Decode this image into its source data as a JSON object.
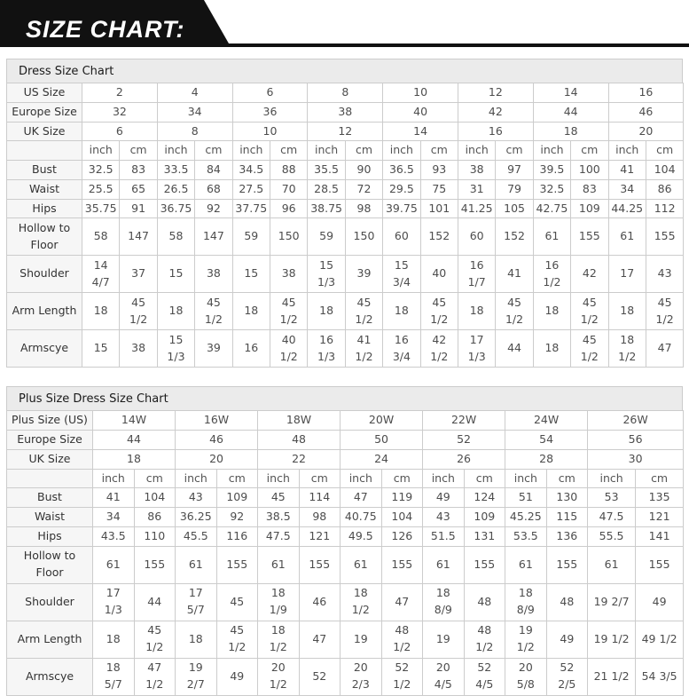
{
  "banner": {
    "title": "SIZE CHART:"
  },
  "colors": {
    "banner_bg": "#111111",
    "caption_bg": "#ebebeb",
    "label_bg": "#f6f6f6",
    "border": "#cccccc",
    "value_text": "#4d4d4d",
    "label_text": "#333333"
  },
  "tables": [
    {
      "caption": "Dress Size Chart",
      "size_rows": [
        {
          "label": "US Size",
          "values": [
            "2",
            "4",
            "6",
            "8",
            "10",
            "12",
            "14",
            "16"
          ]
        },
        {
          "label": "Europe Size",
          "values": [
            "32",
            "34",
            "36",
            "38",
            "40",
            "42",
            "44",
            "46"
          ]
        },
        {
          "label": "UK Size",
          "values": [
            "6",
            "8",
            "10",
            "12",
            "14",
            "16",
            "18",
            "20"
          ]
        }
      ],
      "unit_headers": [
        "inch",
        "cm"
      ],
      "measure_rows": [
        {
          "label": "Bust",
          "values": [
            "32.5",
            "83",
            "33.5",
            "84",
            "34.5",
            "88",
            "35.5",
            "90",
            "36.5",
            "93",
            "38",
            "97",
            "39.5",
            "100",
            "41",
            "104"
          ]
        },
        {
          "label": "Waist",
          "values": [
            "25.5",
            "65",
            "26.5",
            "68",
            "27.5",
            "70",
            "28.5",
            "72",
            "29.5",
            "75",
            "31",
            "79",
            "32.5",
            "83",
            "34",
            "86"
          ]
        },
        {
          "label": "Hips",
          "values": [
            "35.75",
            "91",
            "36.75",
            "92",
            "37.75",
            "96",
            "38.75",
            "98",
            "39.75",
            "101",
            "41.25",
            "105",
            "42.75",
            "109",
            "44.25",
            "112"
          ]
        },
        {
          "label": "Hollow to Floor",
          "values": [
            "58",
            "147",
            "58",
            "147",
            "59",
            "150",
            "59",
            "150",
            "60",
            "152",
            "60",
            "152",
            "61",
            "155",
            "61",
            "155"
          ]
        },
        {
          "label": "Shoulder",
          "values": [
            "14 4/7",
            "37",
            "15",
            "38",
            "15",
            "38",
            "15 1/3",
            "39",
            "15 3/4",
            "40",
            "16 1/7",
            "41",
            "16 1/2",
            "42",
            "17",
            "43"
          ]
        },
        {
          "label": "Arm Length",
          "values": [
            "18",
            "45 1/2",
            "18",
            "45 1/2",
            "18",
            "45 1/2",
            "18",
            "45 1/2",
            "18",
            "45 1/2",
            "18",
            "45 1/2",
            "18",
            "45 1/2",
            "18",
            "45 1/2"
          ]
        },
        {
          "label": "Armscye",
          "values": [
            "15",
            "38",
            "15 1/3",
            "39",
            "16",
            "40 1/2",
            "16 1/3",
            "41 1/2",
            "16 3/4",
            "42 1/2",
            "17 1/3",
            "44",
            "18",
            "45 1/2",
            "18 1/2",
            "47"
          ]
        }
      ]
    },
    {
      "caption": "Plus Size Dress Size Chart",
      "size_rows": [
        {
          "label": "Plus Size (US)",
          "values": [
            "14W",
            "16W",
            "18W",
            "20W",
            "22W",
            "24W",
            "26W"
          ]
        },
        {
          "label": "Europe Size",
          "values": [
            "44",
            "46",
            "48",
            "50",
            "52",
            "54",
            "56"
          ]
        },
        {
          "label": "UK Size",
          "values": [
            "18",
            "20",
            "22",
            "24",
            "26",
            "28",
            "30"
          ]
        }
      ],
      "unit_headers": [
        "inch",
        "cm"
      ],
      "measure_rows": [
        {
          "label": "Bust",
          "values": [
            "41",
            "104",
            "43",
            "109",
            "45",
            "114",
            "47",
            "119",
            "49",
            "124",
            "51",
            "130",
            "53",
            "135"
          ]
        },
        {
          "label": "Waist",
          "values": [
            "34",
            "86",
            "36.25",
            "92",
            "38.5",
            "98",
            "40.75",
            "104",
            "43",
            "109",
            "45.25",
            "115",
            "47.5",
            "121"
          ]
        },
        {
          "label": "Hips",
          "values": [
            "43.5",
            "110",
            "45.5",
            "116",
            "47.5",
            "121",
            "49.5",
            "126",
            "51.5",
            "131",
            "53.5",
            "136",
            "55.5",
            "141"
          ]
        },
        {
          "label": "Hollow to Floor",
          "values": [
            "61",
            "155",
            "61",
            "155",
            "61",
            "155",
            "61",
            "155",
            "61",
            "155",
            "61",
            "155",
            "61",
            "155"
          ]
        },
        {
          "label": "Shoulder",
          "values": [
            "17 1/3",
            "44",
            "17 5/7",
            "45",
            "18 1/9",
            "46",
            "18 1/2",
            "47",
            "18 8/9",
            "48",
            "18 8/9",
            "48",
            "19 2/7",
            "49"
          ]
        },
        {
          "label": "Arm Length",
          "values": [
            "18",
            "45 1/2",
            "18",
            "45 1/2",
            "18 1/2",
            "47",
            "19",
            "48 1/2",
            "19",
            "48 1/2",
            "19 1/2",
            "49",
            "19 1/2",
            "49 1/2"
          ]
        },
        {
          "label": "Armscye",
          "values": [
            "18 5/7",
            "47 1/2",
            "19 2/7",
            "49",
            "20 1/2",
            "52",
            "20 2/3",
            "52 1/2",
            "20 4/5",
            "52 4/5",
            "20 5/8",
            "52 2/5",
            "21 1/2",
            "54 3/5"
          ]
        }
      ]
    }
  ]
}
